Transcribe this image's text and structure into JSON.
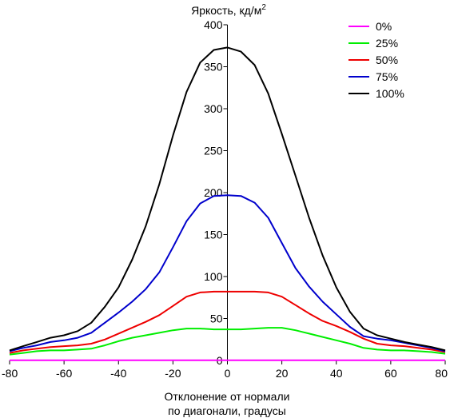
{
  "chart_data": {
    "type": "line",
    "title": "",
    "ylabel": "Яркость, кд/м",
    "ylabel_sup": "2",
    "xlabel_line1": "Отклонение от нормали",
    "xlabel_line2": "по диагонали, градусы",
    "xlim": [
      -80,
      80
    ],
    "ylim": [
      0,
      400
    ],
    "xticks": [
      -80,
      -60,
      -40,
      -20,
      0,
      20,
      40,
      60,
      80
    ],
    "yticks": [
      0,
      50,
      100,
      150,
      200,
      250,
      300,
      350,
      400
    ],
    "x": [
      -80,
      -75,
      -70,
      -65,
      -60,
      -55,
      -50,
      -45,
      -40,
      -35,
      -30,
      -25,
      -20,
      -15,
      -10,
      -5,
      0,
      5,
      10,
      15,
      20,
      25,
      30,
      35,
      40,
      45,
      50,
      55,
      60,
      65,
      70,
      75,
      80
    ],
    "legend_position": "top-right",
    "series": [
      {
        "name": "0%",
        "color": "#ff00ff",
        "values": [
          0.3,
          0.3,
          0.3,
          0.3,
          0.3,
          0.3,
          0.3,
          0.3,
          0.3,
          0.3,
          0.3,
          0.3,
          0.3,
          0.3,
          0.3,
          0.3,
          0.3,
          0.3,
          0.3,
          0.3,
          0.3,
          0.3,
          0.3,
          0.3,
          0.3,
          0.3,
          0.3,
          0.3,
          0.3,
          0.3,
          0.3,
          0.3,
          0.3
        ]
      },
      {
        "name": "25%",
        "color": "#00ee00",
        "values": [
          7,
          9,
          11,
          12,
          12,
          13,
          14,
          18,
          23,
          27,
          30,
          33,
          36,
          38,
          38,
          37,
          37,
          37,
          38,
          39,
          39,
          36,
          32,
          28,
          24,
          20,
          15,
          13,
          12,
          12,
          11,
          10,
          8
        ]
      },
      {
        "name": "50%",
        "color": "#ee0000",
        "values": [
          9,
          12,
          14,
          16,
          17,
          18,
          20,
          25,
          32,
          39,
          46,
          54,
          65,
          76,
          81,
          82,
          82,
          82,
          82,
          81,
          76,
          66,
          56,
          47,
          41,
          34,
          26,
          20,
          18,
          17,
          15,
          13,
          10
        ]
      },
      {
        "name": "75%",
        "color": "#0000cc",
        "values": [
          11,
          15,
          18,
          22,
          24,
          27,
          33,
          45,
          57,
          70,
          85,
          105,
          135,
          166,
          187,
          196,
          197,
          196,
          188,
          170,
          140,
          110,
          88,
          70,
          55,
          40,
          29,
          26,
          24,
          21,
          18,
          15,
          11
        ]
      },
      {
        "name": "100%",
        "color": "#000000",
        "values": [
          12,
          17,
          22,
          27,
          30,
          35,
          45,
          64,
          87,
          120,
          160,
          210,
          268,
          320,
          355,
          370,
          373,
          368,
          352,
          318,
          270,
          220,
          170,
          125,
          87,
          58,
          38,
          30,
          26,
          22,
          19,
          16,
          12
        ]
      }
    ]
  }
}
